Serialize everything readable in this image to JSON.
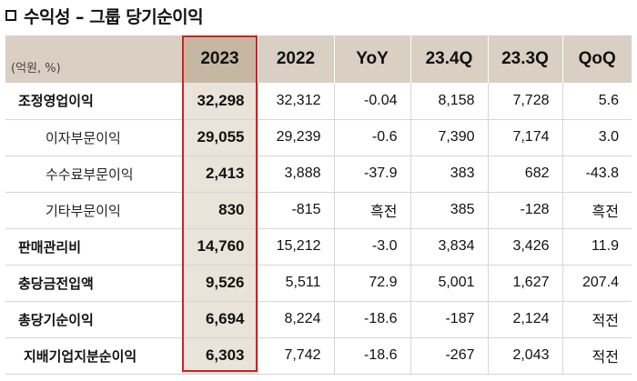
{
  "title": "수익성 – 그룹 당기순이익",
  "unit": "(억원, %)",
  "columns": [
    "2023",
    "2022",
    "YoY",
    "23.4Q",
    "23.3Q",
    "QoQ"
  ],
  "rows": [
    {
      "label": "조정영업이익",
      "style": "main",
      "values": [
        "32,298",
        "32,312",
        "-0.04",
        "8,158",
        "7,728",
        "5.6"
      ]
    },
    {
      "label": "이자부문이익",
      "style": "sub",
      "values": [
        "29,055",
        "29,239",
        "-0.6",
        "7,390",
        "7,174",
        "3.0"
      ]
    },
    {
      "label": "수수료부문이익",
      "style": "sub",
      "values": [
        "2,413",
        "3,888",
        "-37.9",
        "383",
        "682",
        "-43.8"
      ]
    },
    {
      "label": "기타부문이익",
      "style": "sub",
      "values": [
        "830",
        "-815",
        "흑전",
        "385",
        "-128",
        "흑전"
      ]
    },
    {
      "label": "판매관리비",
      "style": "main",
      "values": [
        "14,760",
        "15,212",
        "-3.0",
        "3,834",
        "3,426",
        "11.9"
      ]
    },
    {
      "label": "충당금전입액",
      "style": "main",
      "values": [
        "9,526",
        "5,511",
        "72.9",
        "5,001",
        "1,627",
        "207.4"
      ]
    },
    {
      "label": "총당기순이익",
      "style": "main",
      "values": [
        "6,694",
        "8,224",
        "-18.6",
        "-187",
        "2,124",
        "적전"
      ]
    },
    {
      "label": "지배기업지분순이익",
      "style": "sub2",
      "values": [
        "6,303",
        "7,742",
        "-18.6",
        "-267",
        "2,043",
        "적전"
      ]
    }
  ]
}
